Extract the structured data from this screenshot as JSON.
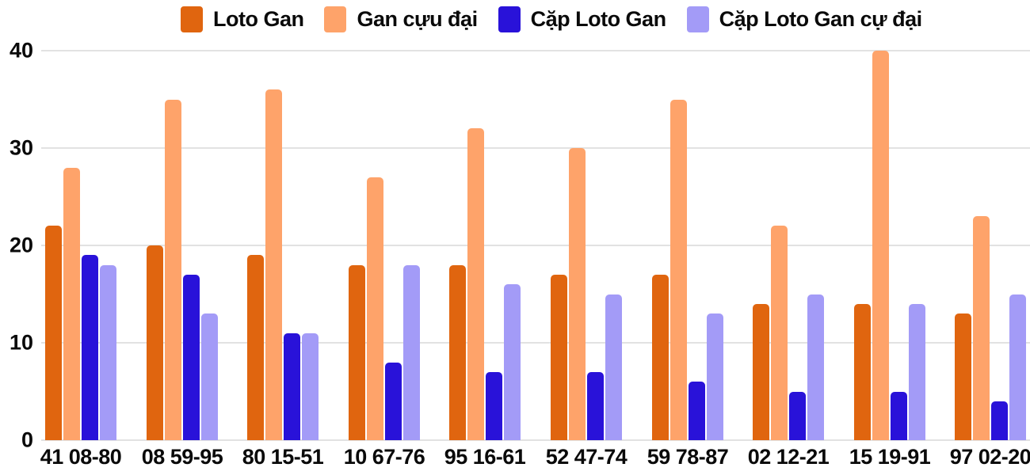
{
  "chart_data": {
    "type": "bar",
    "title": "",
    "xlabel": "",
    "ylabel": "",
    "categories": [
      "41 08-80",
      "08 59-95",
      "80 15-51",
      "10 67-76",
      "95 16-61",
      "52 47-74",
      "59 78-87",
      "02 12-21",
      "15 19-91",
      "97 02-20"
    ],
    "series": [
      {
        "name": "Loto Gan",
        "color": "#e0650f",
        "values": [
          22,
          20,
          19,
          18,
          18,
          17,
          17,
          14,
          14,
          13
        ]
      },
      {
        "name": "Gan cựu đại",
        "color": "#fea36a",
        "values": [
          28,
          35,
          36,
          27,
          32,
          30,
          35,
          22,
          40,
          23
        ]
      },
      {
        "name": "Cặp Loto Gan",
        "color": "#2912d9",
        "values": [
          19,
          17,
          11,
          8,
          7,
          7,
          6,
          5,
          5,
          4
        ]
      },
      {
        "name": "Cặp Loto Gan cự đại",
        "color": "#a39bf7",
        "values": [
          18,
          13,
          11,
          18,
          16,
          15,
          13,
          15,
          14,
          15
        ]
      }
    ],
    "ylim": [
      0,
      40
    ],
    "yticks": [
      0,
      10,
      20,
      30,
      40
    ],
    "grid": true,
    "legend_position": "top"
  },
  "colors": {
    "background": "#ffffff",
    "gridline": "#e2e2e2",
    "text": "#0a0a0a"
  }
}
